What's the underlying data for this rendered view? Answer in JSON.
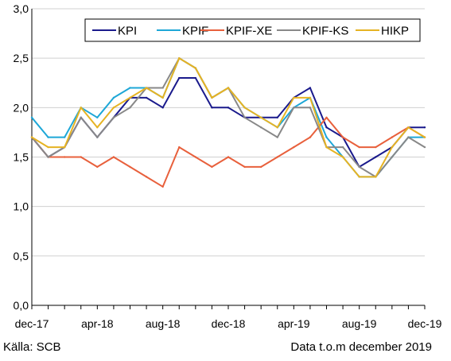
{
  "chart_data": {
    "type": "line",
    "x": [
      "dec-17",
      "jan-18",
      "feb-18",
      "mar-18",
      "apr-18",
      "maj-18",
      "jun-18",
      "jul-18",
      "aug-18",
      "sep-18",
      "okt-18",
      "nov-18",
      "dec-18",
      "jan-19",
      "feb-19",
      "mar-19",
      "apr-19",
      "maj-19",
      "jun-19",
      "jul-19",
      "aug-19",
      "sep-19",
      "okt-19",
      "nov-19",
      "dec-19"
    ],
    "x_tick_labels": [
      "dec-17",
      "apr-18",
      "aug-18",
      "dec-18",
      "apr-19",
      "aug-19",
      "dec-19"
    ],
    "y_ticks": [
      "0,0",
      "0,5",
      "1,0",
      "1,5",
      "2,0",
      "2,5",
      "3,0"
    ],
    "ylim": [
      0,
      3.0
    ],
    "xlabel": "",
    "ylabel": "",
    "grid": "horizontal",
    "legend_placement": "top-right",
    "series": [
      {
        "name": "KPI",
        "color": "#1a1a8c",
        "values": [
          1.7,
          1.5,
          1.6,
          1.9,
          1.7,
          1.9,
          2.1,
          2.1,
          2.0,
          2.3,
          2.3,
          2.0,
          2.0,
          1.9,
          1.9,
          1.9,
          2.1,
          2.2,
          1.8,
          1.7,
          1.4,
          1.5,
          1.6,
          1.8,
          1.8
        ]
      },
      {
        "name": "KPIF",
        "color": "#1ea7d7",
        "values": [
          1.9,
          1.7,
          1.7,
          2.0,
          1.9,
          2.1,
          2.2,
          2.2,
          2.1,
          2.5,
          2.4,
          2.1,
          2.2,
          2.0,
          1.9,
          1.8,
          2.0,
          2.1,
          1.7,
          1.5,
          1.3,
          1.3,
          1.5,
          1.7,
          1.7
        ]
      },
      {
        "name": "KPIF-XE",
        "color": "#e8603c",
        "values": [
          1.7,
          1.5,
          1.5,
          1.5,
          1.4,
          1.5,
          1.4,
          1.3,
          1.2,
          1.6,
          1.5,
          1.4,
          1.5,
          1.4,
          1.4,
          1.5,
          1.6,
          1.7,
          1.9,
          1.7,
          1.6,
          1.6,
          1.7,
          1.8,
          1.7
        ]
      },
      {
        "name": "KPIF-KS",
        "color": "#888888",
        "values": [
          1.7,
          1.5,
          1.6,
          1.9,
          1.7,
          1.9,
          2.0,
          2.2,
          2.2,
          2.5,
          2.4,
          2.1,
          2.2,
          1.9,
          1.8,
          1.7,
          2.0,
          2.0,
          1.6,
          1.6,
          1.4,
          1.3,
          1.5,
          1.7,
          1.6
        ]
      },
      {
        "name": "HIKP",
        "color": "#e6b323",
        "values": [
          1.7,
          1.6,
          1.6,
          2.0,
          1.8,
          2.0,
          2.1,
          2.2,
          2.1,
          2.5,
          2.4,
          2.1,
          2.2,
          2.0,
          1.9,
          1.8,
          2.1,
          2.1,
          1.6,
          1.5,
          1.3,
          1.3,
          1.6,
          1.8,
          1.7
        ]
      }
    ]
  },
  "source_text": "Källa: SCB",
  "note_text": "Data t.o.m december 2019"
}
